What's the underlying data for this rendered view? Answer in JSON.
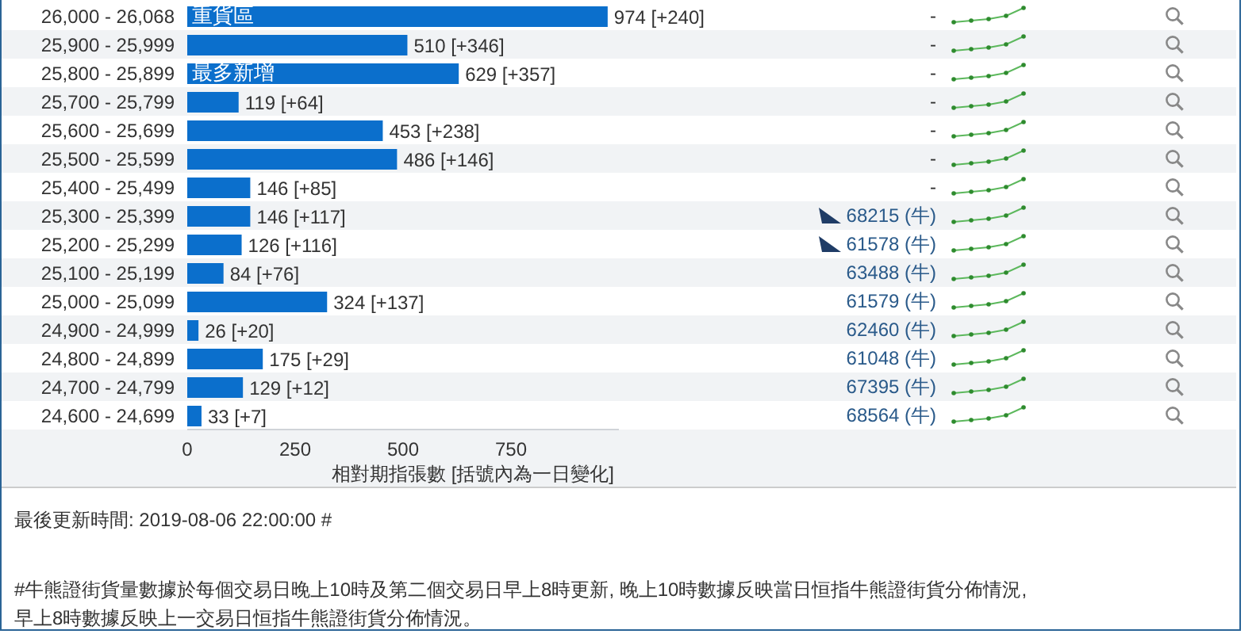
{
  "chart_data": {
    "type": "bar",
    "orientation": "horizontal",
    "categories": [
      "26,000 - 26,068",
      "25,900 - 25,999",
      "25,800 - 25,899",
      "25,700 - 25,799",
      "25,600 - 25,699",
      "25,500 - 25,599",
      "25,400 - 25,499",
      "25,300 - 25,399",
      "25,200 - 25,299",
      "25,100 - 25,199",
      "25,000 - 25,099",
      "24,900 - 24,999",
      "24,800 - 24,899",
      "24,700 - 24,799",
      "24,600 - 24,699"
    ],
    "values": [
      974,
      510,
      629,
      119,
      453,
      486,
      146,
      146,
      126,
      84,
      324,
      26,
      175,
      129,
      33
    ],
    "value_labels": [
      "974 [+240]",
      "510 [+346]",
      "629 [+357]",
      "119 [+64]",
      "453 [+238]",
      "486 [+146]",
      "146 [+85]",
      "146 [+117]",
      "126 [+116]",
      "84 [+76]",
      "324 [+137]",
      "26 [+20]",
      "175 [+29]",
      "129 [+12]",
      "33 [+7]"
    ],
    "color": "#0b6fcc",
    "xlim": [
      0,
      1000
    ],
    "xticks": [
      0,
      250,
      500,
      750
    ],
    "xlabel": "相對期指張數 [括號內為一日變化]",
    "annotations": [
      {
        "text": "重貨區",
        "x": 0,
        "y": "26,000 - 26,068"
      },
      {
        "text": "最多新增",
        "x": 0,
        "y": "25,800 - 25,899"
      },
      "-",
      "-",
      "-",
      "-",
      "-",
      "-",
      "-",
      "68215 (牛)",
      "61578 (牛)",
      "63488 (牛)",
      "61579 (牛)",
      "62460 (牛)",
      "61048 (牛)",
      "67395 (牛)",
      "68564 (牛)",
      "最後更新時間: 2019-08-06 22:00:00 #",
      "#牛熊證街貨量數據於每個交易日晚上10時及第二個交易日早上8時更新, 晚上10時數據反映當日恒指牛熊證街貨分佈情況,",
      "早上8時數據反映上一交易日恒指牛熊證街貨分佈情況。"
    ]
  }
}
